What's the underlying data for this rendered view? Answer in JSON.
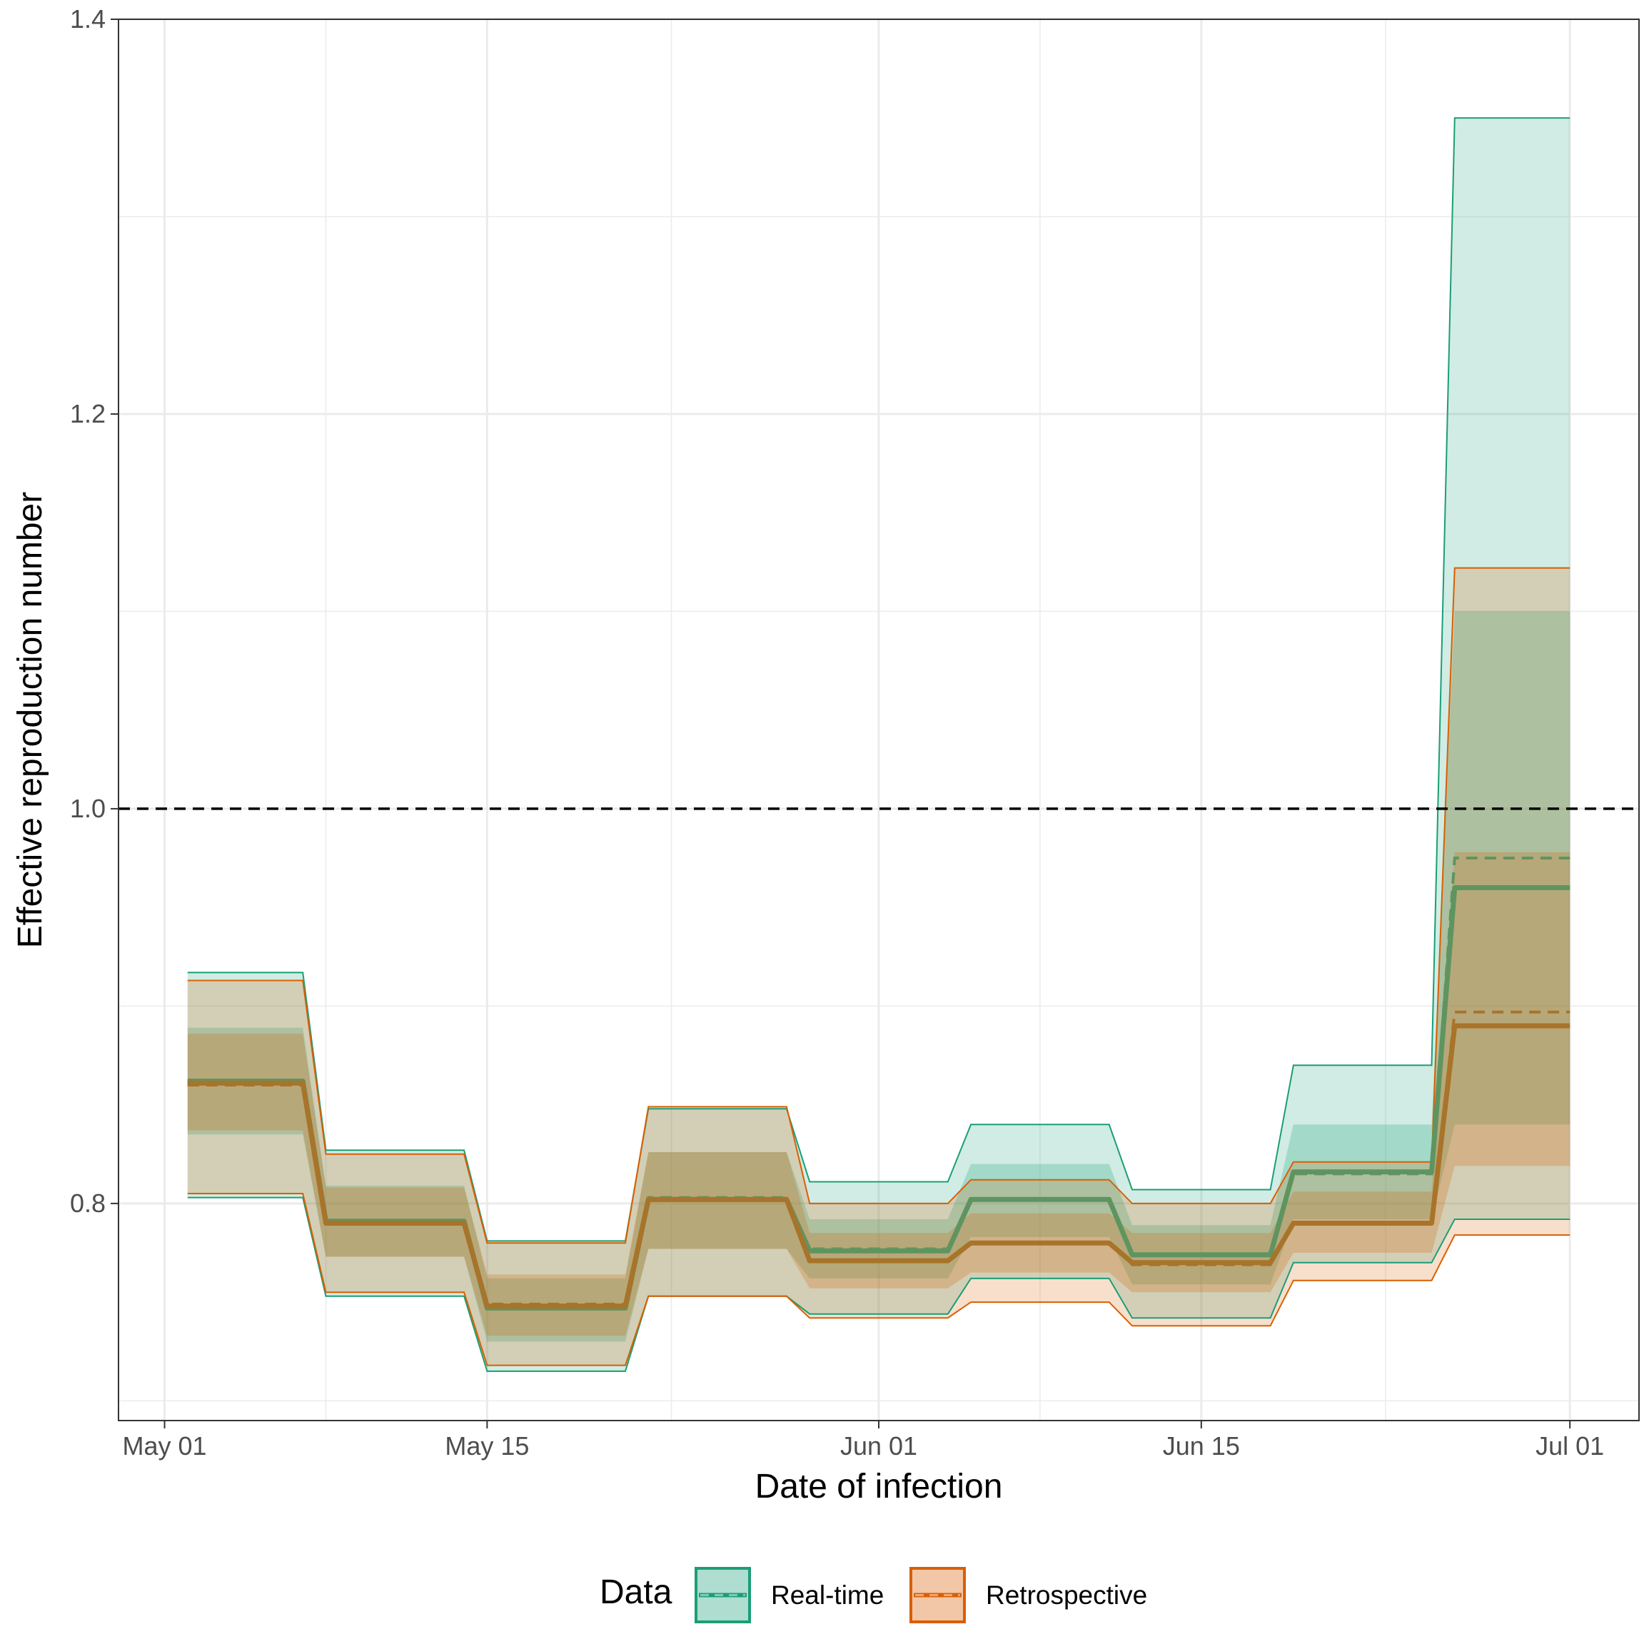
{
  "chart_data": {
    "type": "area",
    "xlabel": "Date of infection",
    "ylabel": "Effective reproduction number",
    "xlim": [
      "2021-04-29",
      "2021-07-04"
    ],
    "ylim": [
      0.69,
      1.4
    ],
    "x_ticks": [
      {
        "date": "2021-05-01",
        "label": "May 01"
      },
      {
        "date": "2021-05-15",
        "label": "May 15"
      },
      {
        "date": "2021-06-01",
        "label": "Jun 01"
      },
      {
        "date": "2021-06-15",
        "label": "Jun 15"
      },
      {
        "date": "2021-07-01",
        "label": "Jul 01"
      }
    ],
    "y_ticks": [
      {
        "value": 0.8,
        "label": "0.8"
      },
      {
        "value": 1.0,
        "label": "1.0"
      },
      {
        "value": 1.2,
        "label": "1.2"
      },
      {
        "value": 1.4,
        "label": "1.4"
      }
    ],
    "reference_line": {
      "y": 1.0,
      "style": "dashed",
      "color": "#000000"
    },
    "grid": true,
    "legend": {
      "title": "Data",
      "position": "bottom",
      "entries": [
        {
          "label": "Real-time",
          "color": "#1b9e77"
        },
        {
          "label": "Retrospective",
          "color": "#d95f02"
        }
      ]
    },
    "series": [
      {
        "name": "Real-time",
        "color": "#1b9e77",
        "line_color": "#5f9460",
        "points": [
          {
            "x": "2021-05-02",
            "lo90": 0.803,
            "lo50": 0.835,
            "mid": 0.862,
            "hi50": 0.889,
            "hi90": 0.917,
            "median": 0.861
          },
          {
            "x": "2021-05-07",
            "lo90": 0.803,
            "lo50": 0.835,
            "mid": 0.862,
            "hi50": 0.889,
            "hi90": 0.917,
            "median": 0.861
          },
          {
            "x": "2021-05-08",
            "lo90": 0.753,
            "lo50": 0.773,
            "mid": 0.791,
            "hi50": 0.809,
            "hi90": 0.827,
            "median": 0.791
          },
          {
            "x": "2021-05-14",
            "lo90": 0.753,
            "lo50": 0.773,
            "mid": 0.791,
            "hi50": 0.809,
            "hi90": 0.827,
            "median": 0.791
          },
          {
            "x": "2021-05-15",
            "lo90": 0.715,
            "lo50": 0.73,
            "mid": 0.747,
            "hi50": 0.762,
            "hi90": 0.781,
            "median": 0.748
          },
          {
            "x": "2021-05-21",
            "lo90": 0.715,
            "lo50": 0.73,
            "mid": 0.747,
            "hi50": 0.762,
            "hi90": 0.781,
            "median": 0.748
          },
          {
            "x": "2021-05-22",
            "lo90": 0.753,
            "lo50": 0.777,
            "mid": 0.802,
            "hi50": 0.826,
            "hi90": 0.848,
            "median": 0.803
          },
          {
            "x": "2021-05-28",
            "lo90": 0.753,
            "lo50": 0.777,
            "mid": 0.802,
            "hi50": 0.826,
            "hi90": 0.848,
            "median": 0.803
          },
          {
            "x": "2021-05-29",
            "lo90": 0.744,
            "lo50": 0.762,
            "mid": 0.776,
            "hi50": 0.792,
            "hi90": 0.811,
            "median": 0.777
          },
          {
            "x": "2021-06-04",
            "lo90": 0.744,
            "lo50": 0.762,
            "mid": 0.776,
            "hi50": 0.792,
            "hi90": 0.811,
            "median": 0.777
          },
          {
            "x": "2021-06-05",
            "lo90": 0.762,
            "lo50": 0.783,
            "mid": 0.802,
            "hi50": 0.82,
            "hi90": 0.84,
            "median": 0.802
          },
          {
            "x": "2021-06-11",
            "lo90": 0.762,
            "lo50": 0.783,
            "mid": 0.802,
            "hi50": 0.82,
            "hi90": 0.84,
            "median": 0.802
          },
          {
            "x": "2021-06-12",
            "lo90": 0.742,
            "lo50": 0.759,
            "mid": 0.774,
            "hi50": 0.789,
            "hi90": 0.807,
            "median": 0.774
          },
          {
            "x": "2021-06-18",
            "lo90": 0.742,
            "lo50": 0.759,
            "mid": 0.774,
            "hi50": 0.789,
            "hi90": 0.807,
            "median": 0.774
          },
          {
            "x": "2021-06-19",
            "lo90": 0.77,
            "lo50": 0.792,
            "mid": 0.816,
            "hi50": 0.84,
            "hi90": 0.87,
            "median": 0.815
          },
          {
            "x": "2021-06-25",
            "lo90": 0.77,
            "lo50": 0.792,
            "mid": 0.816,
            "hi50": 0.84,
            "hi90": 0.87,
            "median": 0.815
          },
          {
            "x": "2021-06-26",
            "lo90": 0.792,
            "lo50": 0.84,
            "mid": 0.96,
            "hi50": 1.1,
            "hi90": 1.35,
            "median": 0.975
          },
          {
            "x": "2021-07-01",
            "lo90": 0.792,
            "lo50": 0.84,
            "mid": 0.96,
            "hi50": 1.1,
            "hi90": 1.35,
            "median": 0.975
          }
        ]
      },
      {
        "name": "Retrospective",
        "color": "#d95f02",
        "line_color": "#a8742a",
        "points": [
          {
            "x": "2021-05-02",
            "lo90": 0.805,
            "lo50": 0.837,
            "mid": 0.861,
            "hi50": 0.886,
            "hi90": 0.913,
            "median": 0.86
          },
          {
            "x": "2021-05-07",
            "lo90": 0.805,
            "lo50": 0.837,
            "mid": 0.861,
            "hi50": 0.886,
            "hi90": 0.913,
            "median": 0.86
          },
          {
            "x": "2021-05-08",
            "lo90": 0.755,
            "lo50": 0.773,
            "mid": 0.79,
            "hi50": 0.808,
            "hi90": 0.825,
            "median": 0.79
          },
          {
            "x": "2021-05-14",
            "lo90": 0.755,
            "lo50": 0.773,
            "mid": 0.79,
            "hi50": 0.808,
            "hi90": 0.825,
            "median": 0.79
          },
          {
            "x": "2021-05-15",
            "lo90": 0.718,
            "lo50": 0.733,
            "mid": 0.748,
            "hi50": 0.764,
            "hi90": 0.78,
            "median": 0.749
          },
          {
            "x": "2021-05-21",
            "lo90": 0.718,
            "lo50": 0.733,
            "mid": 0.748,
            "hi50": 0.764,
            "hi90": 0.78,
            "median": 0.749
          },
          {
            "x": "2021-05-22",
            "lo90": 0.753,
            "lo50": 0.777,
            "mid": 0.802,
            "hi50": 0.826,
            "hi90": 0.849,
            "median": 0.802
          },
          {
            "x": "2021-05-28",
            "lo90": 0.753,
            "lo50": 0.777,
            "mid": 0.802,
            "hi50": 0.826,
            "hi90": 0.849,
            "median": 0.802
          },
          {
            "x": "2021-05-29",
            "lo90": 0.742,
            "lo50": 0.757,
            "mid": 0.771,
            "hi50": 0.785,
            "hi90": 0.8,
            "median": 0.771
          },
          {
            "x": "2021-06-04",
            "lo90": 0.742,
            "lo50": 0.757,
            "mid": 0.771,
            "hi50": 0.785,
            "hi90": 0.8,
            "median": 0.771
          },
          {
            "x": "2021-06-05",
            "lo90": 0.75,
            "lo50": 0.765,
            "mid": 0.78,
            "hi50": 0.795,
            "hi90": 0.812,
            "median": 0.78
          },
          {
            "x": "2021-06-11",
            "lo90": 0.75,
            "lo50": 0.765,
            "mid": 0.78,
            "hi50": 0.795,
            "hi90": 0.812,
            "median": 0.78
          },
          {
            "x": "2021-06-12",
            "lo90": 0.738,
            "lo50": 0.755,
            "mid": 0.77,
            "hi50": 0.785,
            "hi90": 0.8,
            "median": 0.769
          },
          {
            "x": "2021-06-18",
            "lo90": 0.738,
            "lo50": 0.755,
            "mid": 0.77,
            "hi50": 0.785,
            "hi90": 0.8,
            "median": 0.769
          },
          {
            "x": "2021-06-19",
            "lo90": 0.761,
            "lo50": 0.775,
            "mid": 0.79,
            "hi50": 0.806,
            "hi90": 0.821,
            "median": 0.79
          },
          {
            "x": "2021-06-25",
            "lo90": 0.761,
            "lo50": 0.775,
            "mid": 0.79,
            "hi50": 0.806,
            "hi90": 0.821,
            "median": 0.79
          },
          {
            "x": "2021-06-26",
            "lo90": 0.784,
            "lo50": 0.819,
            "mid": 0.89,
            "hi50": 0.978,
            "hi90": 1.122,
            "median": 0.897
          },
          {
            "x": "2021-07-01",
            "lo90": 0.784,
            "lo50": 0.819,
            "mid": 0.89,
            "hi50": 0.978,
            "hi90": 1.122,
            "median": 0.897
          }
        ]
      }
    ]
  }
}
